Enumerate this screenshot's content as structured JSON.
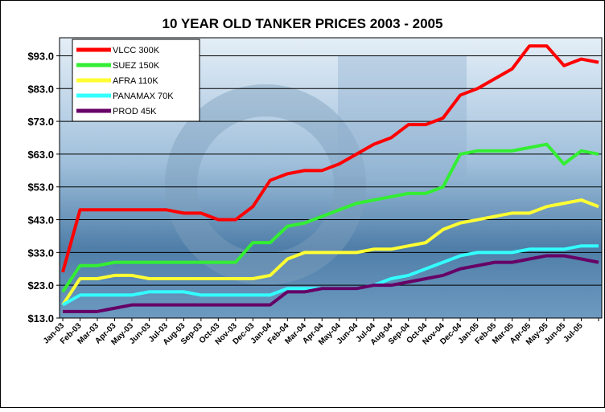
{
  "chart_data": {
    "type": "line",
    "title": "10 YEAR OLD TANKER PRICES 2003 - 2005",
    "categories": [
      "Jan-03",
      "Feb-03",
      "Mar-03",
      "Apr-03",
      "May-03",
      "Jun-03",
      "Jul-03",
      "Aug-03",
      "Sep-03",
      "Oct-03",
      "Nov-03",
      "Dec-03",
      "Jan-04",
      "Feb-04",
      "Mar-04",
      "Apr-04",
      "May-04",
      "Jun-04",
      "Jul-04",
      "Aug-04",
      "Sep-04",
      "Oct-04",
      "Nov-04",
      "Dec-04",
      "Jan-05",
      "Feb-05",
      "Mar-05",
      "Apr-05",
      "May-05",
      "Jun-05",
      "Jul-05",
      null
    ],
    "series": [
      {
        "name": "VLCC 300K",
        "color": "#ff0000",
        "values": [
          27,
          46,
          46,
          46,
          46,
          46,
          46,
          45,
          45,
          43,
          43,
          47,
          55,
          57,
          58,
          58,
          60,
          63,
          66,
          68,
          72,
          72,
          74,
          81,
          83,
          86,
          89,
          96,
          96,
          90,
          92,
          91
        ]
      },
      {
        "name": "SUEZ 150K",
        "color": "#33ee33",
        "values": [
          21,
          29,
          29,
          30,
          30,
          30,
          30,
          30,
          30,
          30,
          30,
          36,
          36,
          41,
          42,
          44,
          46,
          48,
          49,
          50,
          51,
          51,
          53,
          63,
          64,
          64,
          64,
          65,
          66,
          60,
          64,
          63
        ]
      },
      {
        "name": "AFRA 110K",
        "color": "#ffff33",
        "values": [
          17,
          25,
          25,
          26,
          26,
          25,
          25,
          25,
          25,
          25,
          25,
          25,
          26,
          31,
          33,
          33,
          33,
          33,
          34,
          34,
          35,
          36,
          40,
          42,
          43,
          44,
          45,
          45,
          47,
          48,
          49,
          47
        ]
      },
      {
        "name": "PANAMAX 70K",
        "color": "#33ffff",
        "values": [
          17,
          20,
          20,
          20,
          20,
          21,
          21,
          21,
          20,
          20,
          20,
          20,
          20,
          22,
          22,
          22,
          22,
          22,
          23,
          25,
          26,
          28,
          30,
          32,
          33,
          33,
          33,
          34,
          34,
          34,
          35,
          35
        ]
      },
      {
        "name": "PROD 45K",
        "color": "#660066",
        "values": [
          15,
          15,
          15,
          16,
          17,
          17,
          17,
          17,
          17,
          17,
          17,
          17,
          17,
          21,
          21,
          22,
          22,
          22,
          23,
          23,
          24,
          25,
          26,
          28,
          29,
          30,
          30,
          31,
          32,
          32,
          31,
          30
        ]
      }
    ],
    "ylim": [
      13,
      98.5
    ],
    "yticks": [
      {
        "value": 13,
        "label": "$13.0"
      },
      {
        "value": 23,
        "label": "$23.0"
      },
      {
        "value": 33,
        "label": "$33.0"
      },
      {
        "value": 43,
        "label": "$43.0"
      },
      {
        "value": 53,
        "label": "$53.0"
      },
      {
        "value": 63,
        "label": "$63.0"
      },
      {
        "value": 73,
        "label": "$73.0"
      },
      {
        "value": 83,
        "label": "$83.0"
      },
      {
        "value": 93,
        "label": "$93.0"
      }
    ],
    "grid": true,
    "legend": "top-left"
  }
}
